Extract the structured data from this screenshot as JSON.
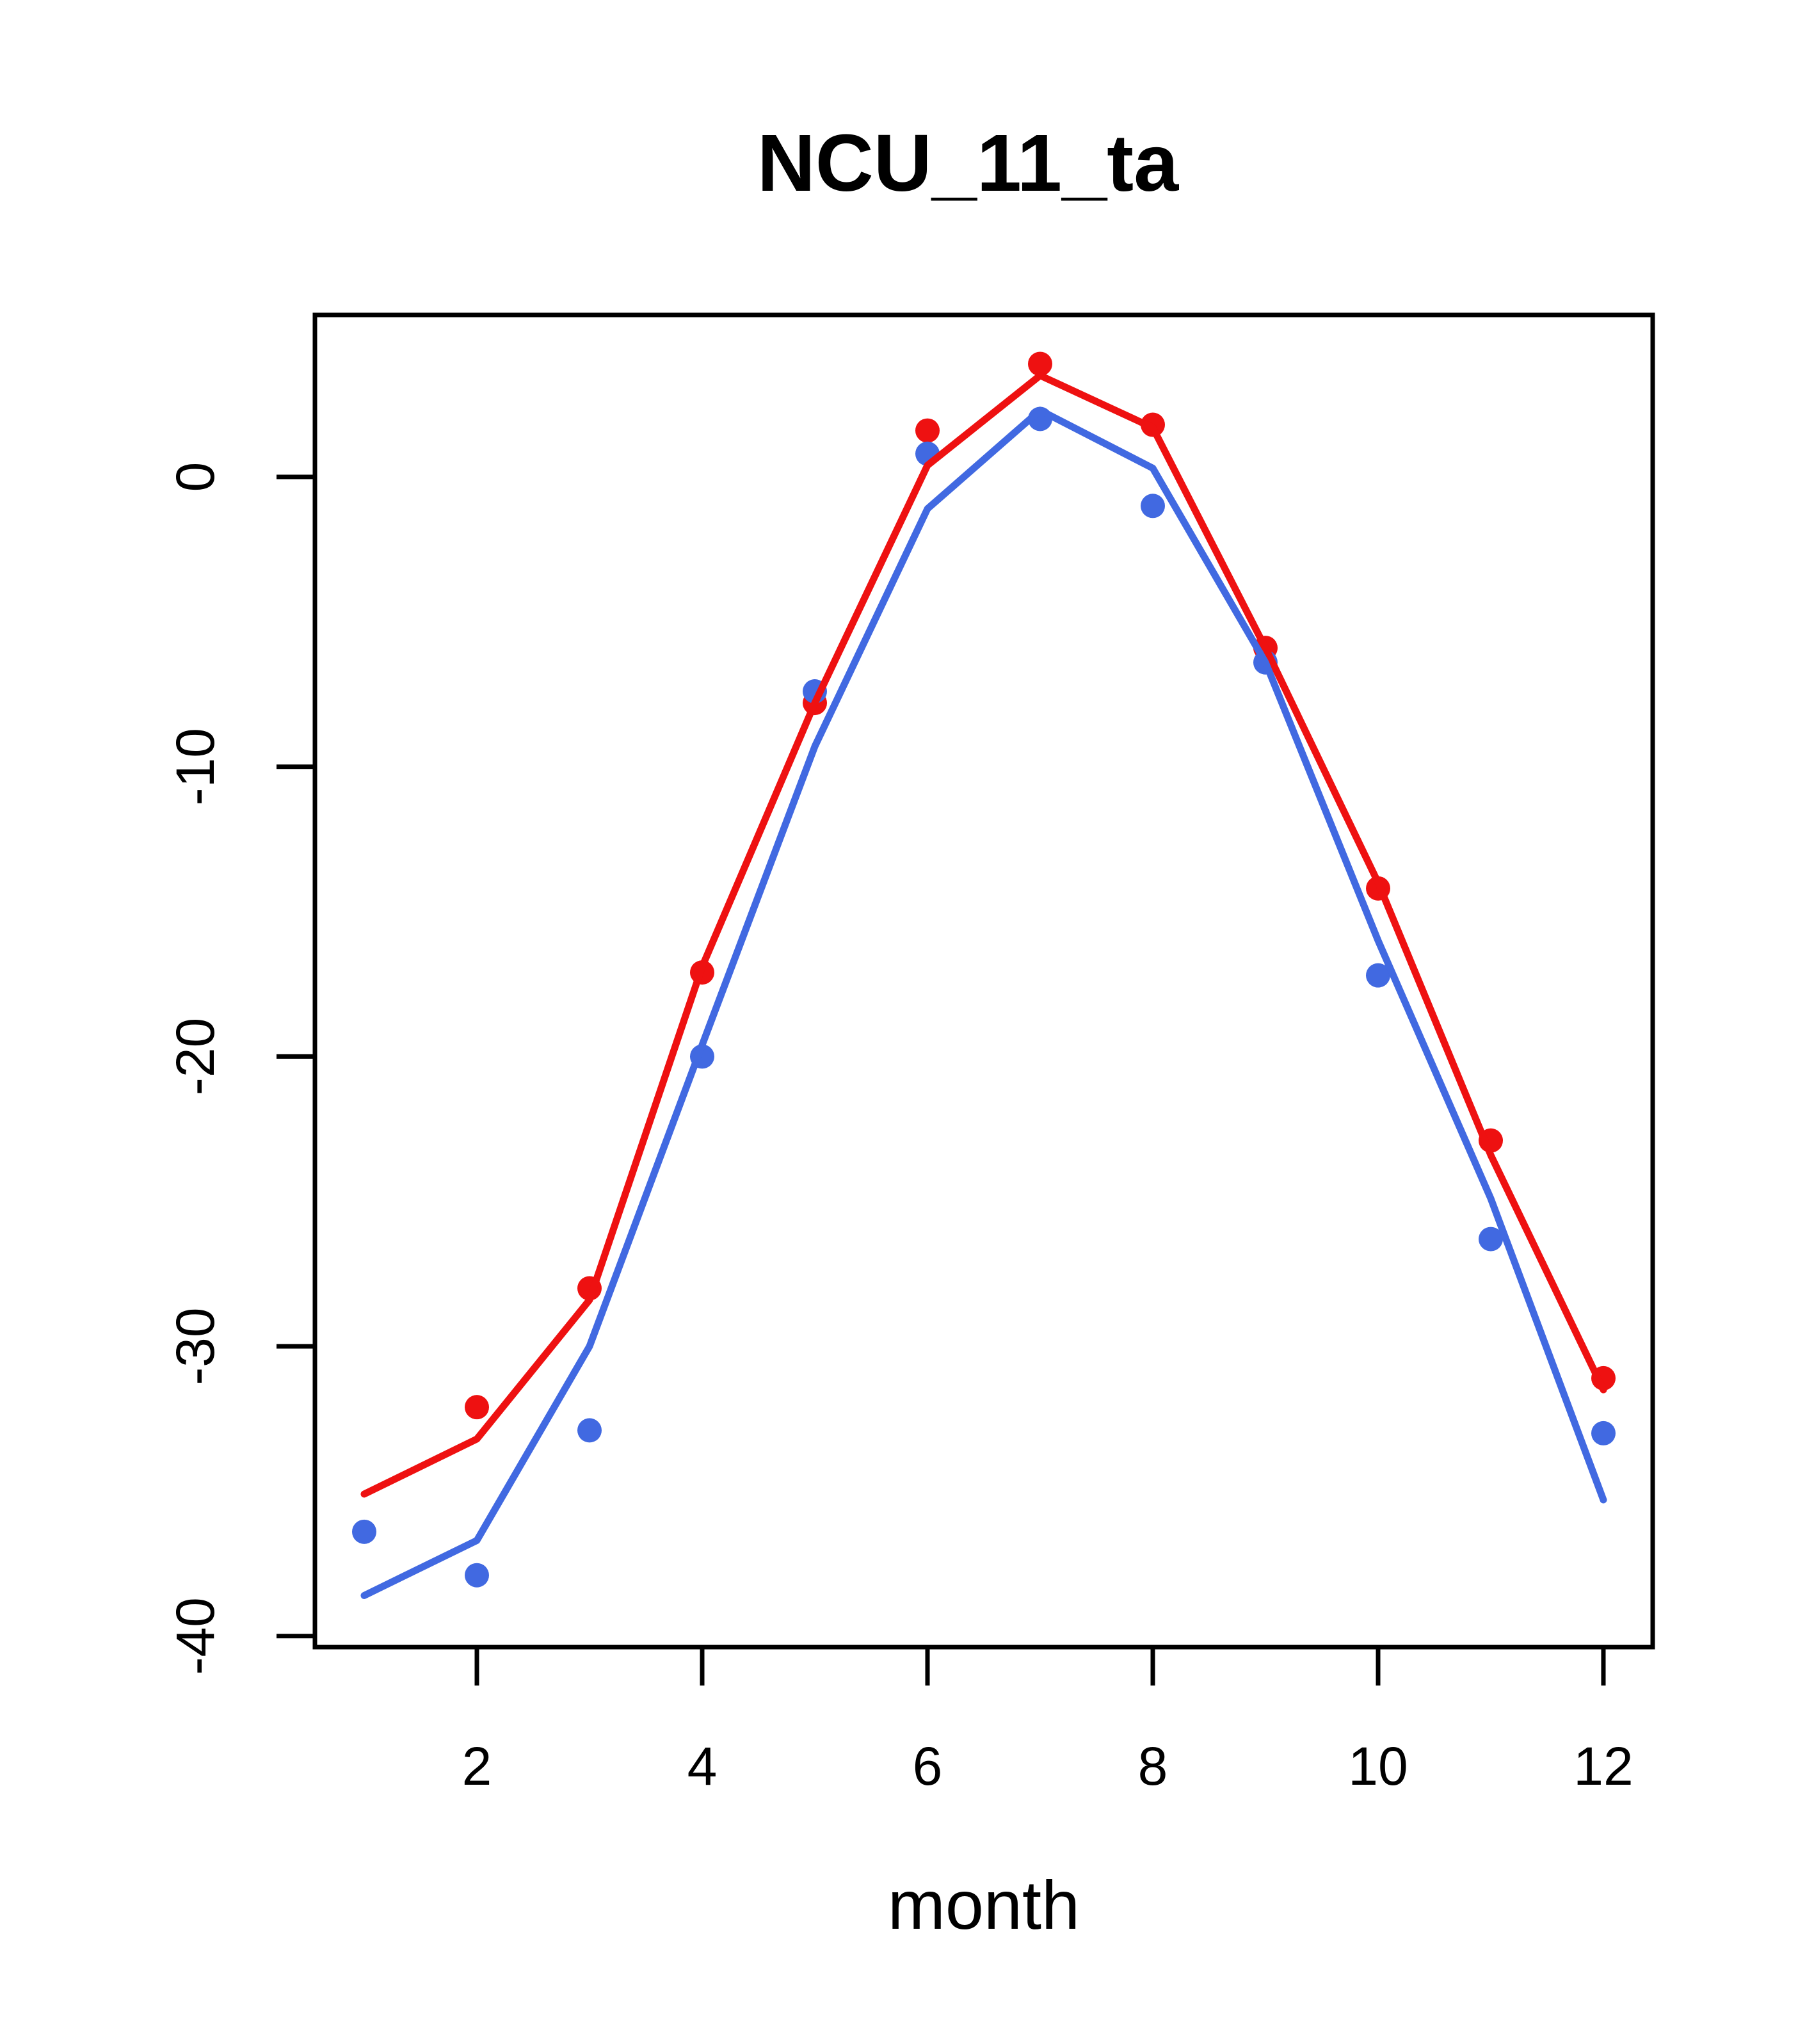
{
  "title": "NCU_11_ta",
  "xlabel": "month",
  "chart_data": {
    "type": "line",
    "title": "NCU_11_ta",
    "xlabel": "month",
    "ylabel": "",
    "grid": false,
    "legend": "none",
    "x": [
      1,
      2,
      3,
      4,
      5,
      6,
      7,
      8,
      9,
      10,
      11,
      12
    ],
    "x_ticks": [
      2,
      4,
      6,
      8,
      10,
      12
    ],
    "y_ticks": [
      0,
      -10,
      -20,
      -30,
      -40
    ],
    "xlim": [
      0.56,
      12.44
    ],
    "ylim": [
      -40.4,
      5.6
    ],
    "colors": {
      "red": "#EE1111",
      "blue": "#4169E1",
      "axis": "#000000"
    },
    "series": [
      {
        "name": "red-points",
        "kind": "points",
        "color": "#EE1111",
        "values": [
          null,
          -32.1,
          -28.0,
          -17.1,
          -7.8,
          1.6,
          3.9,
          1.8,
          -5.9,
          -14.2,
          -22.9,
          -31.1
        ]
      },
      {
        "name": "blue-points",
        "kind": "points",
        "color": "#4169E1",
        "values": [
          -36.4,
          -37.9,
          -32.9,
          -20.0,
          -7.4,
          0.8,
          2.0,
          -1.0,
          -6.4,
          -17.2,
          -26.3,
          -33.0
        ]
      },
      {
        "name": "red-line",
        "kind": "line",
        "color": "#EE1111",
        "values": [
          -35.1,
          -33.2,
          -28.4,
          -16.9,
          -7.8,
          0.4,
          3.5,
          1.7,
          -5.9,
          -14.0,
          -23.4,
          -31.5
        ]
      },
      {
        "name": "blue-line",
        "kind": "line",
        "color": "#4169E1",
        "values": [
          -38.6,
          -36.7,
          -30.0,
          -19.6,
          -9.3,
          -1.1,
          2.3,
          0.3,
          -6.4,
          -16.0,
          -24.9,
          -35.3
        ]
      }
    ]
  }
}
